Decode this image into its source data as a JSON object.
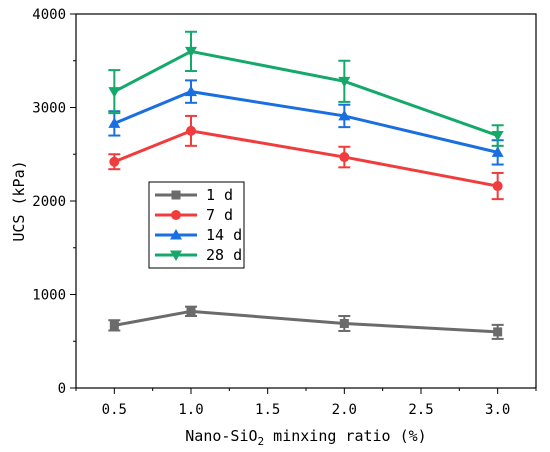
{
  "chart_data": {
    "type": "line",
    "xlabel_main": "Nano-SiO",
    "xlabel_sub": "2",
    "xlabel_rest": " minxing ratio (%)",
    "ylabel": "UCS (kPa)",
    "x": [
      0.5,
      1.0,
      2.0,
      3.0
    ],
    "x_tick_labels": [
      "0.5",
      "1.0",
      "1.5",
      "2.0",
      "2.5",
      "3.0"
    ],
    "y_tick_labels": [
      "0",
      "1000",
      "2000",
      "3000",
      "4000"
    ],
    "ylim": [
      0,
      4000
    ],
    "legend_position": "middle-left",
    "series": [
      {
        "name": "1 d",
        "color": "#6b6b6b",
        "marker": "square",
        "values": [
          670,
          820,
          690,
          600
        ],
        "errors": [
          55,
          50,
          80,
          75
        ]
      },
      {
        "name": "7 d",
        "color": "#f03c3c",
        "marker": "circle",
        "values": [
          2420,
          2750,
          2470,
          2160
        ],
        "errors": [
          80,
          160,
          110,
          140
        ]
      },
      {
        "name": "14 d",
        "color": "#1a6fe0",
        "marker": "triangle-up",
        "values": [
          2830,
          3170,
          2910,
          2520
        ],
        "errors": [
          130,
          120,
          120,
          130
        ]
      },
      {
        "name": "28 d",
        "color": "#14a96a",
        "marker": "triangle-down",
        "values": [
          3170,
          3600,
          3280,
          2700
        ],
        "errors": [
          230,
          210,
          220,
          110
        ]
      }
    ]
  }
}
